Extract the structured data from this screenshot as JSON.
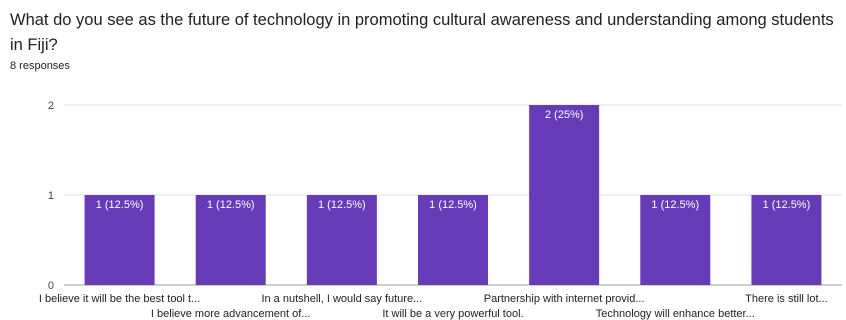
{
  "question": "What do you see as the future of technology in promoting cultural awareness and understanding among students in Fiji?",
  "responses": "8 responses",
  "colors": {
    "bar": "#673ab7",
    "grid": "#e0e0e0",
    "axis": "#9e9e9e"
  },
  "chart_data": {
    "type": "bar",
    "categories": [
      "I believe it will be the best tool t...",
      "I believe more advancement of...",
      "In a nutshell, I would say future...",
      "It will be a very powerful tool.",
      "Partnership with internet provid...",
      "Technology will enhance better...",
      "There is still lot..."
    ],
    "values": [
      1,
      1,
      1,
      1,
      2,
      1,
      1
    ],
    "data_labels": [
      "1 (12.5%)",
      "1 (12.5%)",
      "1 (12.5%)",
      "1 (12.5%)",
      "2 (25%)",
      "1 (12.5%)",
      "1 (12.5%)"
    ],
    "y_ticks": [
      "0",
      "1",
      "2"
    ],
    "ylim": [
      0,
      2
    ],
    "grid": true
  }
}
